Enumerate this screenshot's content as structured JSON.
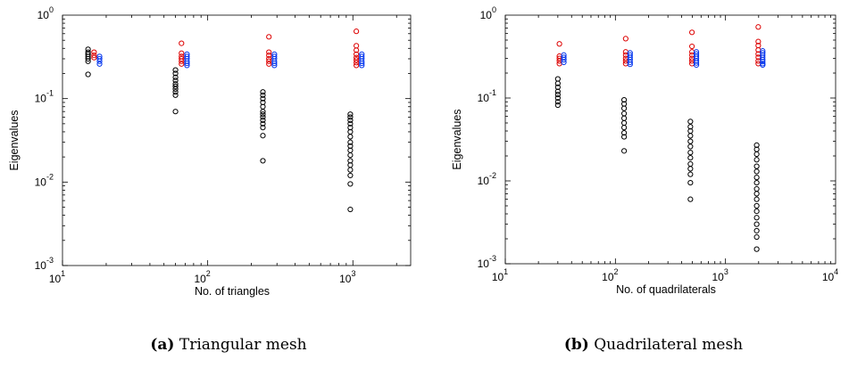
{
  "chart_data": [
    {
      "type": "scatter",
      "xlabel": "No. of triangles",
      "ylabel": "Eigenvalues",
      "x_scale": "log",
      "y_scale": "log",
      "xlim": [
        10,
        2500
      ],
      "ylim": [
        0.001,
        1
      ],
      "x_ticks": [
        {
          "base": "10",
          "exp": "1",
          "value": 10
        },
        {
          "base": "10",
          "exp": "2",
          "value": 100
        },
        {
          "base": "10",
          "exp": "3",
          "value": 1000
        }
      ],
      "y_ticks": [
        {
          "base": "10",
          "exp": "0",
          "value": 1
        },
        {
          "base": "10",
          "exp": "-1",
          "value": 0.1
        },
        {
          "base": "10",
          "exp": "-2",
          "value": 0.01
        },
        {
          "base": "10",
          "exp": "-3",
          "value": 0.001
        }
      ],
      "caption_tag": "(a)",
      "caption_text": "Triangular mesh",
      "series": [
        {
          "color": "#000000",
          "points": [
            [
              15,
              0.39
            ],
            [
              15,
              0.36
            ],
            [
              15,
              0.34
            ],
            [
              15,
              0.32
            ],
            [
              15,
              0.3
            ],
            [
              15,
              0.28
            ],
            [
              15,
              0.195
            ],
            [
              60,
              0.22
            ],
            [
              60,
              0.2
            ],
            [
              60,
              0.18
            ],
            [
              60,
              0.165
            ],
            [
              60,
              0.15
            ],
            [
              60,
              0.14
            ],
            [
              60,
              0.13
            ],
            [
              60,
              0.12
            ],
            [
              60,
              0.11
            ],
            [
              60,
              0.07
            ],
            [
              240,
              0.12
            ],
            [
              240,
              0.11
            ],
            [
              240,
              0.1
            ],
            [
              240,
              0.09
            ],
            [
              240,
              0.08
            ],
            [
              240,
              0.07
            ],
            [
              240,
              0.065
            ],
            [
              240,
              0.06
            ],
            [
              240,
              0.055
            ],
            [
              240,
              0.05
            ],
            [
              240,
              0.045
            ],
            [
              240,
              0.036
            ],
            [
              240,
              0.018
            ],
            [
              960,
              0.065
            ],
            [
              960,
              0.06
            ],
            [
              960,
              0.055
            ],
            [
              960,
              0.05
            ],
            [
              960,
              0.045
            ],
            [
              960,
              0.04
            ],
            [
              960,
              0.035
            ],
            [
              960,
              0.03
            ],
            [
              960,
              0.027
            ],
            [
              960,
              0.024
            ],
            [
              960,
              0.021
            ],
            [
              960,
              0.018
            ],
            [
              960,
              0.016
            ],
            [
              960,
              0.014
            ],
            [
              960,
              0.012
            ],
            [
              960,
              0.0095
            ],
            [
              960,
              0.0047
            ]
          ]
        },
        {
          "color": "#dd0000",
          "points": [
            [
              16.5,
              0.36
            ],
            [
              16.5,
              0.33
            ],
            [
              16.5,
              0.31
            ],
            [
              66,
              0.46
            ],
            [
              66,
              0.35
            ],
            [
              66,
              0.32
            ],
            [
              66,
              0.3
            ],
            [
              66,
              0.28
            ],
            [
              66,
              0.26
            ],
            [
              264,
              0.55
            ],
            [
              264,
              0.36
            ],
            [
              264,
              0.33
            ],
            [
              264,
              0.3
            ],
            [
              264,
              0.28
            ],
            [
              264,
              0.26
            ],
            [
              1056,
              0.64
            ],
            [
              1056,
              0.43
            ],
            [
              1056,
              0.38
            ],
            [
              1056,
              0.34
            ],
            [
              1056,
              0.31
            ],
            [
              1056,
              0.29
            ],
            [
              1056,
              0.27
            ],
            [
              1056,
              0.25
            ]
          ]
        },
        {
          "color": "#0033ee",
          "points": [
            [
              18,
              0.32
            ],
            [
              18,
              0.3
            ],
            [
              18,
              0.28
            ],
            [
              18,
              0.26
            ],
            [
              72,
              0.34
            ],
            [
              72,
              0.32
            ],
            [
              72,
              0.3
            ],
            [
              72,
              0.28
            ],
            [
              72,
              0.265
            ],
            [
              72,
              0.25
            ],
            [
              288,
              0.34
            ],
            [
              288,
              0.32
            ],
            [
              288,
              0.3
            ],
            [
              288,
              0.28
            ],
            [
              288,
              0.265
            ],
            [
              288,
              0.25
            ],
            [
              1152,
              0.34
            ],
            [
              1152,
              0.32
            ],
            [
              1152,
              0.3
            ],
            [
              1152,
              0.28
            ],
            [
              1152,
              0.265
            ],
            [
              1152,
              0.25
            ]
          ]
        }
      ]
    },
    {
      "type": "scatter",
      "xlabel": "No. of quadrilaterals",
      "ylabel": "Eigenvalues",
      "x_scale": "log",
      "y_scale": "log",
      "xlim": [
        10,
        10000
      ],
      "ylim": [
        0.001,
        1
      ],
      "x_ticks": [
        {
          "base": "10",
          "exp": "1",
          "value": 10
        },
        {
          "base": "10",
          "exp": "2",
          "value": 100
        },
        {
          "base": "10",
          "exp": "3",
          "value": 1000
        },
        {
          "base": "10",
          "exp": "4",
          "value": 10000
        }
      ],
      "y_ticks": [
        {
          "base": "10",
          "exp": "0",
          "value": 1
        },
        {
          "base": "10",
          "exp": "-1",
          "value": 0.1
        },
        {
          "base": "10",
          "exp": "-2",
          "value": 0.01
        },
        {
          "base": "10",
          "exp": "-3",
          "value": 0.001
        }
      ],
      "caption_tag": "(b)",
      "caption_text": "Quadrilateral mesh",
      "series": [
        {
          "color": "#000000",
          "points": [
            [
              30,
              0.17
            ],
            [
              30,
              0.15
            ],
            [
              30,
              0.135
            ],
            [
              30,
              0.12
            ],
            [
              30,
              0.11
            ],
            [
              30,
              0.1
            ],
            [
              30,
              0.09
            ],
            [
              30,
              0.082
            ],
            [
              120,
              0.095
            ],
            [
              120,
              0.085
            ],
            [
              120,
              0.075
            ],
            [
              120,
              0.065
            ],
            [
              120,
              0.057
            ],
            [
              120,
              0.05
            ],
            [
              120,
              0.044
            ],
            [
              120,
              0.038
            ],
            [
              120,
              0.034
            ],
            [
              120,
              0.023
            ],
            [
              480,
              0.052
            ],
            [
              480,
              0.045
            ],
            [
              480,
              0.04
            ],
            [
              480,
              0.035
            ],
            [
              480,
              0.03
            ],
            [
              480,
              0.026
            ],
            [
              480,
              0.022
            ],
            [
              480,
              0.019
            ],
            [
              480,
              0.016
            ],
            [
              480,
              0.014
            ],
            [
              480,
              0.012
            ],
            [
              480,
              0.0095
            ],
            [
              480,
              0.006
            ],
            [
              1920,
              0.027
            ],
            [
              1920,
              0.024
            ],
            [
              1920,
              0.021
            ],
            [
              1920,
              0.018
            ],
            [
              1920,
              0.015
            ],
            [
              1920,
              0.013
            ],
            [
              1920,
              0.011
            ],
            [
              1920,
              0.0095
            ],
            [
              1920,
              0.008
            ],
            [
              1920,
              0.007
            ],
            [
              1920,
              0.006
            ],
            [
              1920,
              0.005
            ],
            [
              1920,
              0.0043
            ],
            [
              1920,
              0.0036
            ],
            [
              1920,
              0.003
            ],
            [
              1920,
              0.0025
            ],
            [
              1920,
              0.0021
            ],
            [
              1920,
              0.0015
            ]
          ]
        },
        {
          "color": "#dd0000",
          "points": [
            [
              31,
              0.45
            ],
            [
              31,
              0.32
            ],
            [
              31,
              0.3
            ],
            [
              31,
              0.28
            ],
            [
              31,
              0.26
            ],
            [
              124,
              0.52
            ],
            [
              124,
              0.36
            ],
            [
              124,
              0.33
            ],
            [
              124,
              0.3
            ],
            [
              124,
              0.28
            ],
            [
              124,
              0.26
            ],
            [
              496,
              0.62
            ],
            [
              496,
              0.42
            ],
            [
              496,
              0.36
            ],
            [
              496,
              0.33
            ],
            [
              496,
              0.3
            ],
            [
              496,
              0.28
            ],
            [
              496,
              0.26
            ],
            [
              1984,
              0.72
            ],
            [
              1984,
              0.48
            ],
            [
              1984,
              0.43
            ],
            [
              1984,
              0.38
            ],
            [
              1984,
              0.34
            ],
            [
              1984,
              0.31
            ],
            [
              1984,
              0.28
            ],
            [
              1984,
              0.26
            ]
          ]
        },
        {
          "color": "#0033ee",
          "points": [
            [
              34,
              0.33
            ],
            [
              34,
              0.31
            ],
            [
              34,
              0.29
            ],
            [
              34,
              0.27
            ],
            [
              136,
              0.35
            ],
            [
              136,
              0.33
            ],
            [
              136,
              0.31
            ],
            [
              136,
              0.29
            ],
            [
              136,
              0.27
            ],
            [
              136,
              0.255
            ],
            [
              544,
              0.36
            ],
            [
              544,
              0.34
            ],
            [
              544,
              0.32
            ],
            [
              544,
              0.3
            ],
            [
              544,
              0.28
            ],
            [
              544,
              0.265
            ],
            [
              544,
              0.25
            ],
            [
              2176,
              0.37
            ],
            [
              2176,
              0.35
            ],
            [
              2176,
              0.33
            ],
            [
              2176,
              0.31
            ],
            [
              2176,
              0.29
            ],
            [
              2176,
              0.275
            ],
            [
              2176,
              0.26
            ],
            [
              2176,
              0.25
            ]
          ]
        }
      ]
    }
  ]
}
